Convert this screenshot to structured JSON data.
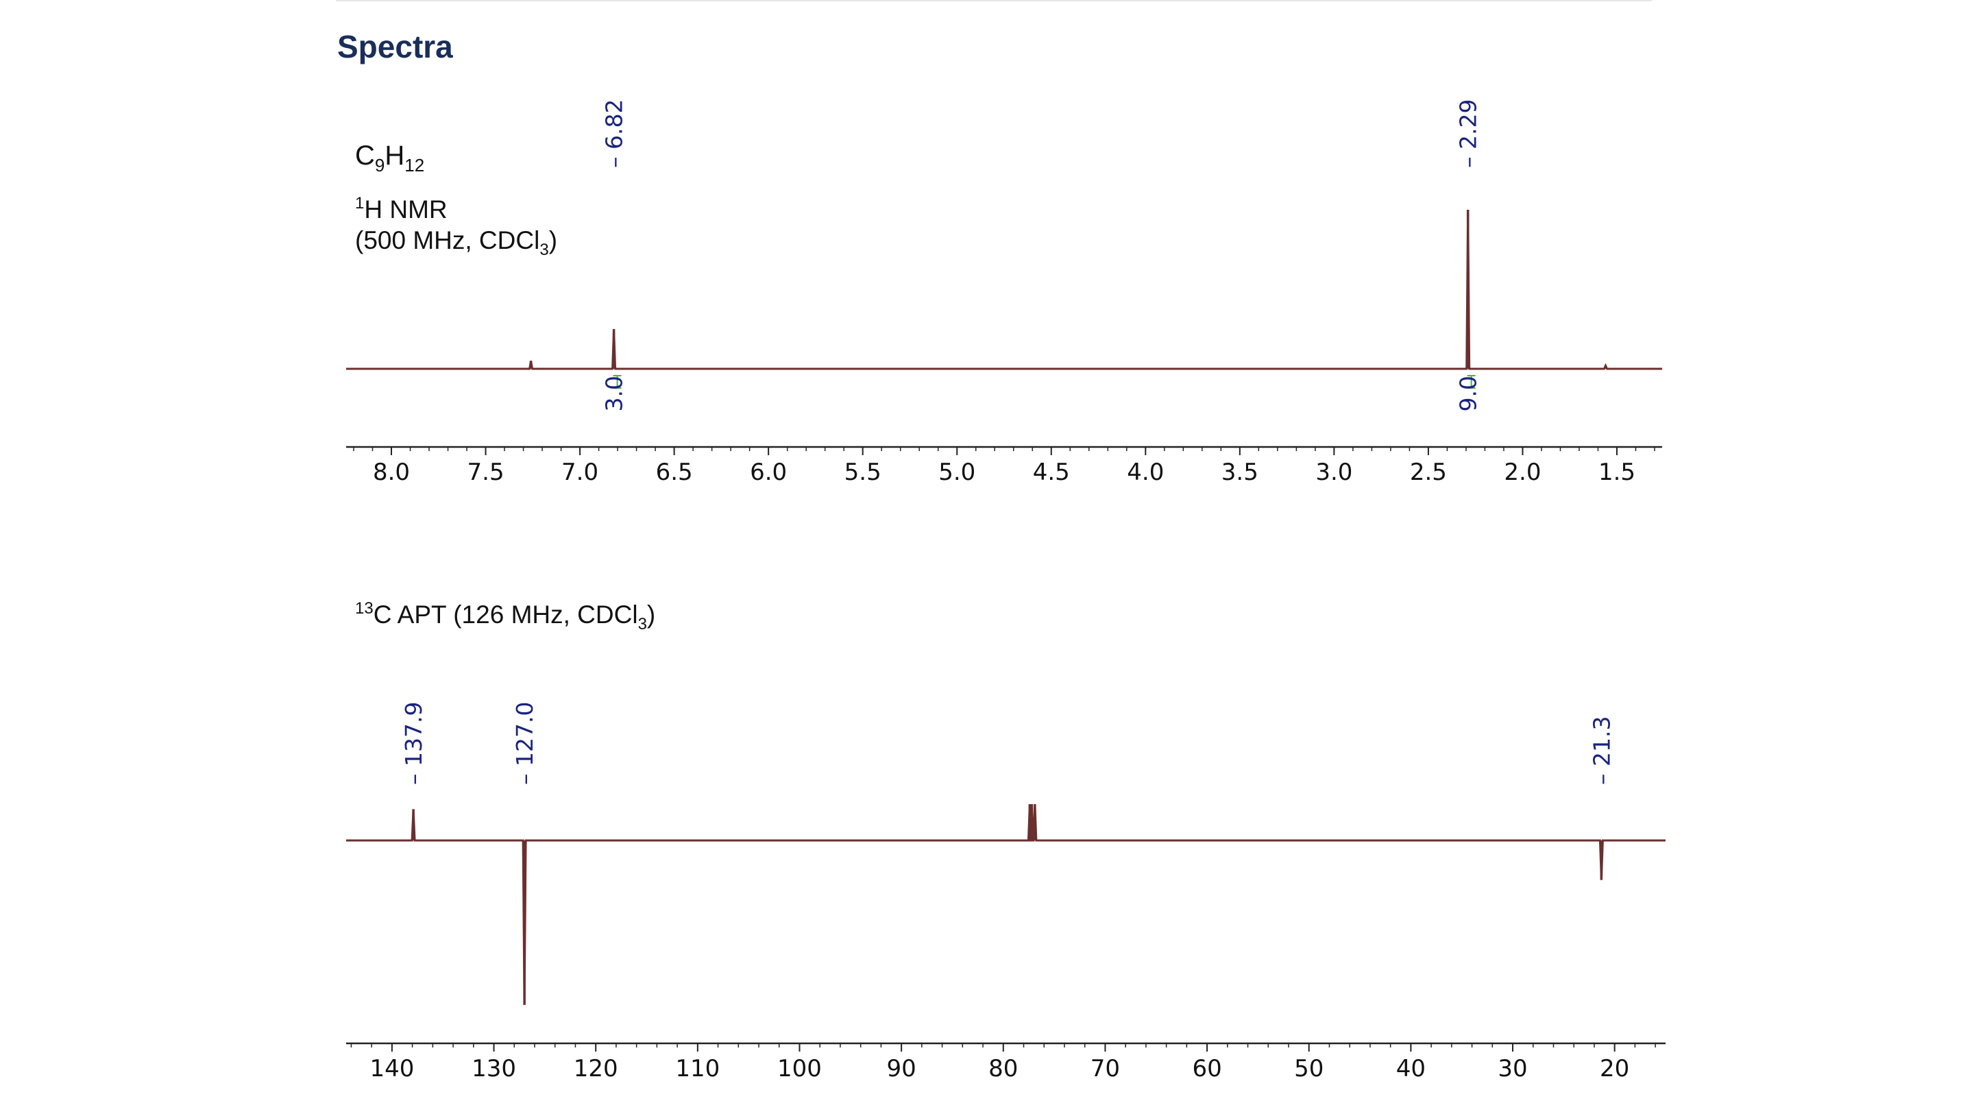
{
  "page": {
    "title": "Spectra",
    "top_rule": true
  },
  "colors": {
    "title": "#1a2e5a",
    "spectrum": "#6b2f2f",
    "peak_label": "#1a237e",
    "integration_mark": "#4caf50",
    "axis": "#222222"
  },
  "chart_data": [
    {
      "type": "line",
      "name": "1H NMR",
      "formula": {
        "base_c": "C",
        "sub_c": "9",
        "base_h": "H",
        "sub_h": "12"
      },
      "label_sup": "1",
      "label_line1": "H NMR",
      "label_line2_pre": "(500 MHz, CDCl",
      "label_line2_sub": "3",
      "label_line2_post": ")",
      "x_unit": "ppm",
      "xlim": [
        8.24,
        1.26
      ],
      "x_reversed": true,
      "x_ticks": [
        8.0,
        7.5,
        7.0,
        6.5,
        6.0,
        5.5,
        5.0,
        4.5,
        4.0,
        3.5,
        3.0,
        2.5,
        2.0,
        1.5
      ],
      "x_tick_labels": [
        "8.0",
        "7.5",
        "7.0",
        "6.5",
        "6.0",
        "5.5",
        "5.0",
        "4.5",
        "4.0",
        "3.5",
        "3.0",
        "2.5",
        "2.0",
        "1.5"
      ],
      "ylim": [
        0,
        1.0
      ],
      "peaks": [
        {
          "x": 7.26,
          "height": 0.05
        },
        {
          "x": 6.82,
          "height": 0.25
        },
        {
          "x": 2.29,
          "height": 1.0
        },
        {
          "x": 1.56,
          "height": 0.02
        }
      ],
      "peak_labels": [
        {
          "x": 6.82,
          "text": "6.82"
        },
        {
          "x": 2.29,
          "text": "2.29"
        }
      ],
      "integrals": [
        {
          "x": 6.82,
          "text": "3.0"
        },
        {
          "x": 2.29,
          "text": "9.0"
        }
      ]
    },
    {
      "type": "line",
      "name": "13C APT",
      "label_sup": "13",
      "label_pre": "C APT (126 MHz, CDCl",
      "label_sub": "3",
      "label_post": ")",
      "x_unit": "ppm",
      "xlim": [
        144.5,
        15.0
      ],
      "x_reversed": true,
      "x_ticks": [
        140,
        130,
        120,
        110,
        100,
        90,
        80,
        70,
        60,
        50,
        40,
        30,
        20
      ],
      "x_tick_labels": [
        "140",
        "130",
        "120",
        "110",
        "100",
        "90",
        "80",
        "70",
        "60",
        "50",
        "40",
        "30",
        "20"
      ],
      "ylim": [
        -1.0,
        0.4
      ],
      "peaks": [
        {
          "x": 137.9,
          "height": 0.19
        },
        {
          "x": 127.0,
          "height": -1.0
        },
        {
          "x": 77.4,
          "height": 0.22
        },
        {
          "x": 77.2,
          "height": 0.22
        },
        {
          "x": 76.9,
          "height": 0.22
        },
        {
          "x": 21.3,
          "height": -0.24
        }
      ],
      "peak_labels": [
        {
          "x": 137.9,
          "text": "137.9"
        },
        {
          "x": 127.0,
          "text": "127.0"
        },
        {
          "x": 21.3,
          "text": "21.3"
        }
      ]
    }
  ]
}
